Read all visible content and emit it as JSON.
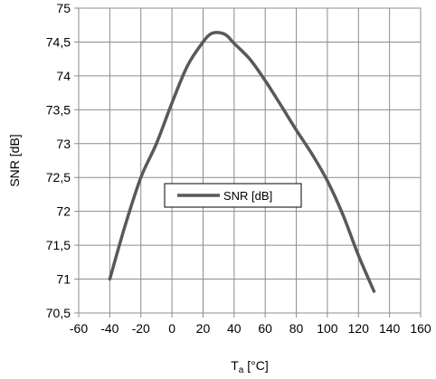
{
  "chart_data": {
    "type": "line",
    "title": "",
    "xlabel_main": "T",
    "xlabel_sub": "a",
    "xlabel_unit": " [°C]",
    "ylabel": "SNR [dB]",
    "xlim": [
      -60,
      160
    ],
    "ylim": [
      70.5,
      75
    ],
    "x_ticks": [
      -60,
      -40,
      -20,
      0,
      20,
      40,
      60,
      80,
      100,
      120,
      140,
      160
    ],
    "y_ticks": [
      70.5,
      71,
      71.5,
      72,
      72.5,
      73,
      73.5,
      74,
      74.5,
      75
    ],
    "x_tick_labels": [
      "-60",
      "-40",
      "-20",
      "0",
      "20",
      "40",
      "60",
      "80",
      "100",
      "120",
      "140",
      "160"
    ],
    "y_tick_labels": [
      "70,5",
      "71",
      "71,5",
      "72",
      "72,5",
      "73",
      "73,5",
      "74",
      "74,5",
      "75"
    ],
    "grid": true,
    "legend_position": "center-left",
    "series": [
      {
        "name": "SNR [dB]",
        "color": "#595959",
        "x": [
          -40,
          -30,
          -20,
          -10,
          0,
          10,
          20,
          25,
          30,
          35,
          40,
          50,
          60,
          70,
          80,
          90,
          100,
          110,
          120,
          130
        ],
        "y": [
          71.0,
          71.8,
          72.5,
          73.0,
          73.6,
          74.15,
          74.5,
          74.62,
          74.64,
          74.6,
          74.48,
          74.25,
          73.93,
          73.57,
          73.2,
          72.85,
          72.45,
          71.95,
          71.35,
          70.82
        ]
      }
    ]
  }
}
